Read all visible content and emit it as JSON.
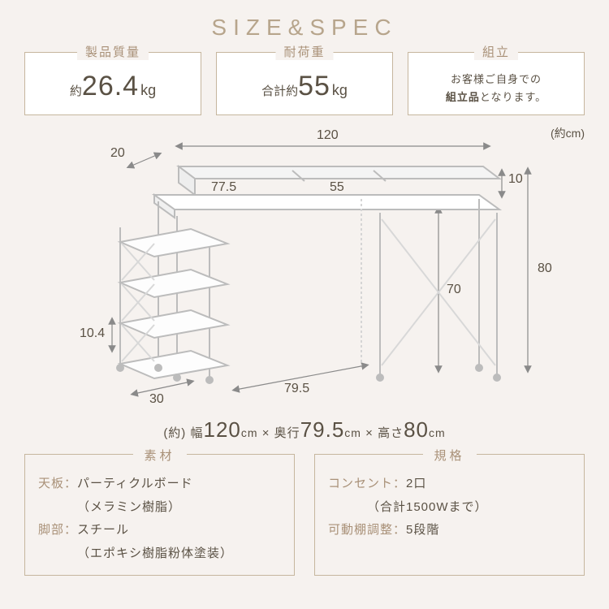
{
  "title": "SIZE&SPEC",
  "top": {
    "weight": {
      "tab": "製品質量",
      "prefix": "約",
      "value": "26.4",
      "unit": "kg"
    },
    "load": {
      "tab": "耐荷重",
      "prefix": "合計約",
      "value": "55",
      "unit": "kg"
    },
    "assembly": {
      "tab": "組立",
      "line1": "お客様ご自身での",
      "strong": "組立品",
      "line2_tail": "となります。"
    }
  },
  "diagram": {
    "unit_note": "(約cm)",
    "labels": {
      "w_top": "120",
      "d_top": "20",
      "w_upper": "77.5",
      "w_shelf_open": "55",
      "h_riser": "10",
      "h_total": "80",
      "h_desk": "70",
      "d_bottom": "79.5",
      "d_shelf": "30",
      "h_shelf_gap": "10.4"
    },
    "colors": {
      "arrow": "#8a8a8a",
      "desk_line": "#bcbcbc",
      "desk_fill": "#ffffff",
      "desk_shade": "#f1f1f1"
    }
  },
  "summary": {
    "prefix": "(約)",
    "w_label": "幅",
    "w": "120",
    "w_unit": "cm",
    "d_label": "奥行",
    "d": "79.5",
    "d_unit": "cm",
    "h_label": "高さ",
    "h": "80",
    "h_unit": "cm",
    "sep": " × "
  },
  "material": {
    "tab": "素材",
    "rows": [
      {
        "k": "天板：",
        "v": "パーティクルボード"
      },
      {
        "indent": true,
        "v": "（メラミン樹脂）"
      },
      {
        "k": "脚部：",
        "v": "スチール"
      },
      {
        "indent": true,
        "v": "（エポキシ樹脂粉体塗装）"
      }
    ]
  },
  "spec": {
    "tab": "規格",
    "rows": [
      {
        "k": "コンセント：",
        "v": "2口"
      },
      {
        "indent": true,
        "v": "（合計1500Wまで）"
      },
      {
        "k": "可動棚調整：",
        "v": "5段階"
      }
    ]
  }
}
